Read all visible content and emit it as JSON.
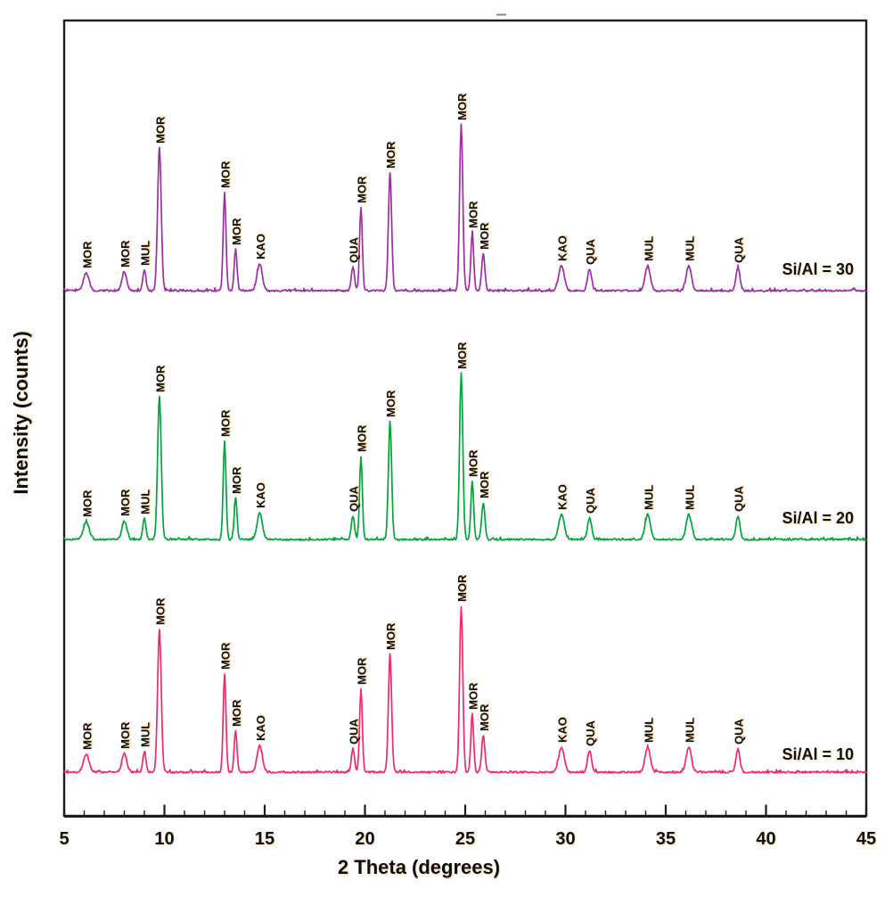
{
  "chart_data": {
    "type": "line",
    "title": "",
    "xlabel": "2 Theta (degrees)",
    "ylabel": "Intensity (counts)",
    "xlim": [
      5,
      45
    ],
    "x_major_ticks": [
      5,
      10,
      15,
      20,
      25,
      30,
      35,
      40,
      45
    ],
    "x_minor_tick_step_degrees": 1,
    "grid": false,
    "y_axis": "unlabeled arbitrary counts; three patterns stacked with vertical offsets",
    "legend_position": "inline at right end of each trace",
    "series": [
      {
        "name": "Si/Al = 30",
        "color": "#9B2FA0",
        "position": "top"
      },
      {
        "name": "Si/Al = 20",
        "color": "#00A33C",
        "position": "middle"
      },
      {
        "name": "Si/Al = 10",
        "color": "#F1286B",
        "position": "bottom"
      }
    ],
    "peaks": [
      {
        "two_theta": 6.1,
        "phase": "MOR",
        "intensity": 20,
        "width": 0.14
      },
      {
        "two_theta": 8.0,
        "phase": "MOR",
        "intensity": 21,
        "width": 0.12
      },
      {
        "two_theta": 9.0,
        "phase": "MUL",
        "intensity": 23,
        "width": 0.08
      },
      {
        "two_theta": 9.75,
        "phase": "MOR",
        "intensity": 160,
        "width": 0.09
      },
      {
        "two_theta": 13.0,
        "phase": "MOR",
        "intensity": 110,
        "width": 0.07
      },
      {
        "two_theta": 13.55,
        "phase": "MOR",
        "intensity": 46,
        "width": 0.07
      },
      {
        "two_theta": 14.75,
        "phase": "KAO",
        "intensity": 30,
        "width": 0.13
      },
      {
        "two_theta": 19.4,
        "phase": "QUA",
        "intensity": 26,
        "width": 0.08
      },
      {
        "two_theta": 19.8,
        "phase": "MOR",
        "intensity": 93,
        "width": 0.07
      },
      {
        "two_theta": 21.25,
        "phase": "MOR",
        "intensity": 132,
        "width": 0.08
      },
      {
        "two_theta": 24.8,
        "phase": "MOR",
        "intensity": 186,
        "width": 0.08
      },
      {
        "two_theta": 25.35,
        "phase": "MOR",
        "intensity": 65,
        "width": 0.07
      },
      {
        "two_theta": 25.9,
        "phase": "MOR",
        "intensity": 41,
        "width": 0.08
      },
      {
        "two_theta": 29.8,
        "phase": "KAO",
        "intensity": 28,
        "width": 0.14
      },
      {
        "two_theta": 31.2,
        "phase": "QUA",
        "intensity": 24,
        "width": 0.1
      },
      {
        "two_theta": 34.1,
        "phase": "MUL",
        "intensity": 28,
        "width": 0.13
      },
      {
        "two_theta": 36.15,
        "phase": "MUL",
        "intensity": 28,
        "width": 0.13
      },
      {
        "two_theta": 38.6,
        "phase": "QUA",
        "intensity": 26,
        "width": 0.1
      }
    ],
    "intensity_units": "arbitrary"
  }
}
